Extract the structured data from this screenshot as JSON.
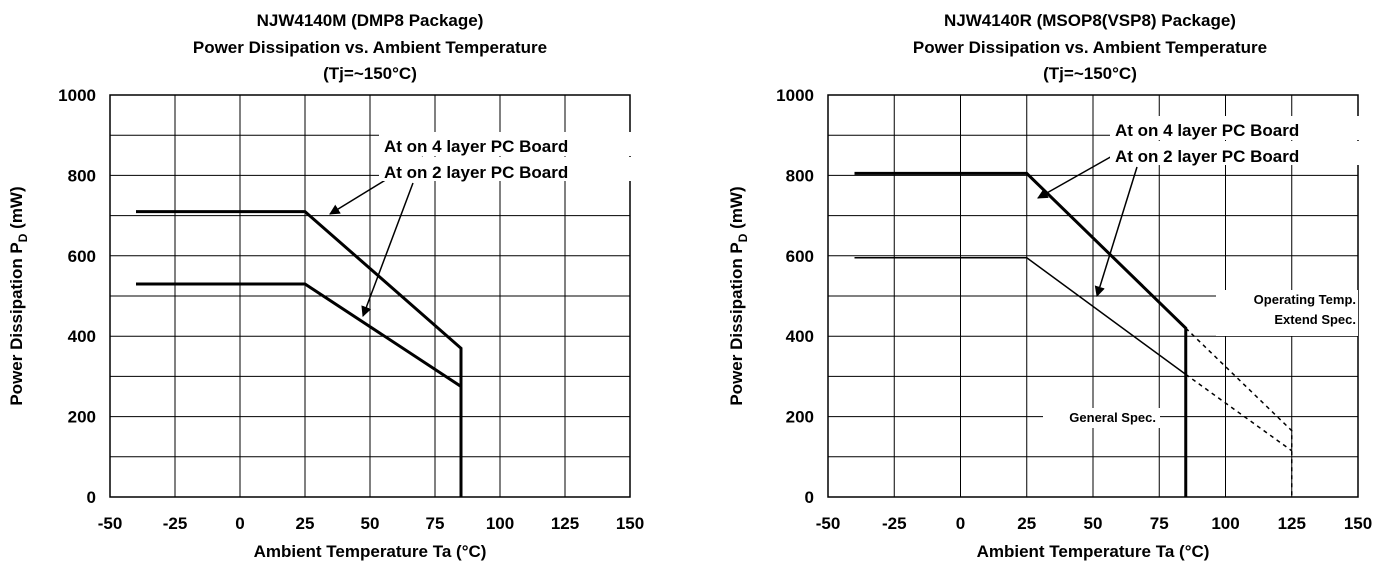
{
  "chart_data": [
    {
      "type": "line",
      "title": "NJW4140M (DMP8 Package)",
      "subtitle": "Power Dissipation vs. Ambient Temperature",
      "condition": "(Tj=~150°C)",
      "xlabel": "Ambient Temperature  Ta  (°C)",
      "ylabel": "Power Dissipation  P",
      "ylabel_sub": "D",
      "ylabel_unit": "(mW)",
      "xlim": [
        -50,
        150
      ],
      "ylim": [
        0,
        1000
      ],
      "xticks": [
        "-50",
        "-25",
        "0",
        "25",
        "50",
        "75",
        "100",
        "125",
        "150"
      ],
      "yticks": [
        "0",
        "200",
        "400",
        "600",
        "800",
        "1000"
      ],
      "grid": true,
      "series": [
        {
          "name": "At on 4 layer PC Board",
          "x": [
            -40,
            25,
            85,
            85
          ],
          "y": [
            710,
            710,
            370,
            0
          ],
          "style": "thick"
        },
        {
          "name": "At on 2 layer PC Board",
          "x": [
            -40,
            25,
            85,
            85
          ],
          "y": [
            530,
            530,
            275,
            0
          ],
          "style": "thick"
        }
      ],
      "annotations": []
    },
    {
      "type": "line",
      "title": "NJW4140R  (MSOP8(VSP8) Package)",
      "subtitle": "Power Dissipation vs. Ambient Temperature",
      "condition": "(Tj=~150°C)",
      "xlabel": "Ambient Temperature  Ta  (°C)",
      "ylabel": "Power Dissipation  P",
      "ylabel_sub": "D",
      "ylabel_unit": "(mW)",
      "xlim": [
        -50,
        150
      ],
      "ylim": [
        0,
        1000
      ],
      "xticks": [
        "-50",
        "-25",
        "0",
        "25",
        "50",
        "75",
        "100",
        "125",
        "150"
      ],
      "yticks": [
        "0",
        "200",
        "400",
        "600",
        "800",
        "1000"
      ],
      "grid": true,
      "series": [
        {
          "name": "At on 4 layer PC Board",
          "x": [
            -40,
            25,
            85,
            85
          ],
          "y": [
            805,
            805,
            420,
            0
          ],
          "style": "thick"
        },
        {
          "name": "At on 2 layer PC Board",
          "x": [
            -40,
            25,
            85,
            85
          ],
          "y": [
            595,
            595,
            305,
            0
          ],
          "style": "thin"
        },
        {
          "name": "",
          "x": [
            85,
            125,
            125
          ],
          "y": [
            420,
            165,
            0
          ],
          "style": "dashed"
        },
        {
          "name": "",
          "x": [
            85,
            125
          ],
          "y": [
            305,
            115
          ],
          "style": "dashed"
        }
      ],
      "annotations": [
        "Operating Temp.",
        "Extend Spec.",
        "General Spec."
      ]
    }
  ]
}
